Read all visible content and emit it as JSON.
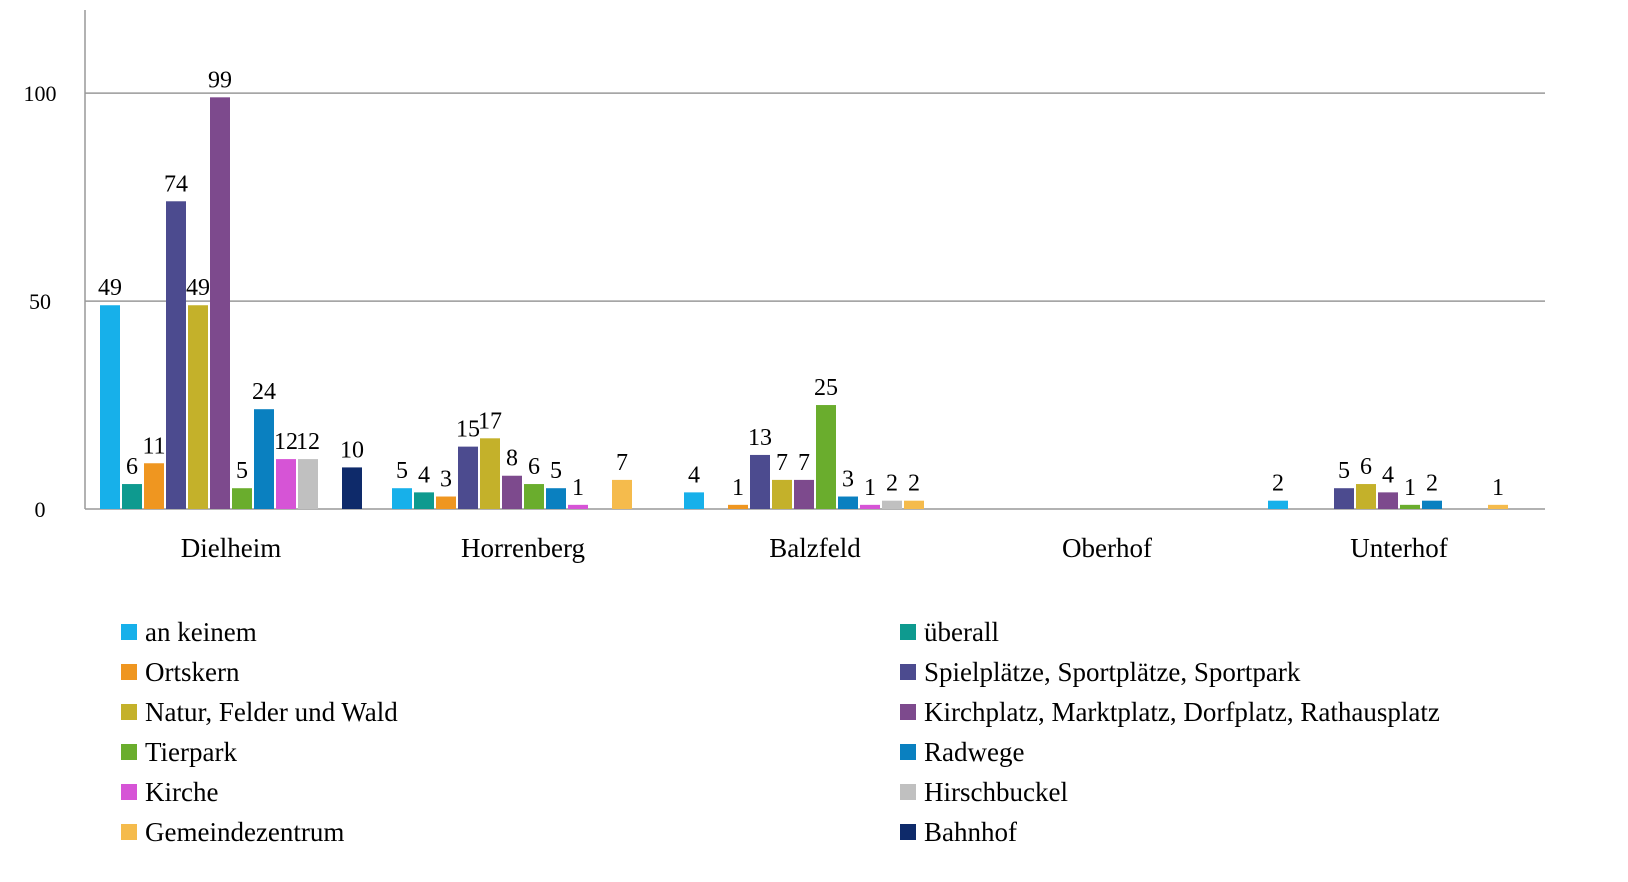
{
  "chart_data": {
    "type": "bar",
    "categories": [
      "Dielheim",
      "Horrenberg",
      "Balzfeld",
      "Oberhof",
      "Unterhof"
    ],
    "series": [
      {
        "name": "an keinem",
        "color": "#17b0ea",
        "values": [
          49,
          5,
          4,
          null,
          2
        ]
      },
      {
        "name": "überall",
        "color": "#0e9a8f",
        "values": [
          6,
          4,
          null,
          null,
          null
        ]
      },
      {
        "name": "Ortskern",
        "color": "#ef9620",
        "values": [
          11,
          3,
          1,
          null,
          null
        ]
      },
      {
        "name": "Spielplätze, Sportplätze, Sportpark",
        "color": "#4c4b8f",
        "values": [
          74,
          15,
          13,
          null,
          5
        ]
      },
      {
        "name": "Natur, Felder und Wald",
        "color": "#c4b12a",
        "values": [
          49,
          17,
          7,
          null,
          6
        ]
      },
      {
        "name": "Kirchplatz, Marktplatz, Dorfplatz, Rathausplatz",
        "color": "#7d4a8d",
        "values": [
          99,
          8,
          7,
          null,
          4
        ]
      },
      {
        "name": "Tierpark",
        "color": "#6aad2d",
        "values": [
          5,
          6,
          25,
          null,
          1
        ]
      },
      {
        "name": "Radwege",
        "color": "#0a80c0",
        "values": [
          24,
          5,
          3,
          null,
          2
        ]
      },
      {
        "name": "Kirche",
        "color": "#d654d6",
        "values": [
          12,
          1,
          1,
          null,
          null
        ]
      },
      {
        "name": "Hirschbuckel",
        "color": "#c0c0c0",
        "values": [
          12,
          null,
          2,
          null,
          null
        ]
      },
      {
        "name": "Gemeindezentrum",
        "color": "#f5bb4c",
        "values": [
          null,
          7,
          2,
          null,
          1
        ]
      },
      {
        "name": "Bahnhof",
        "color": "#0e2a6a",
        "values": [
          10,
          null,
          null,
          null,
          null
        ]
      }
    ],
    "ylim": [
      0,
      120
    ],
    "yticks": [
      0,
      50,
      100
    ],
    "grid": true,
    "legend": "bottom"
  }
}
